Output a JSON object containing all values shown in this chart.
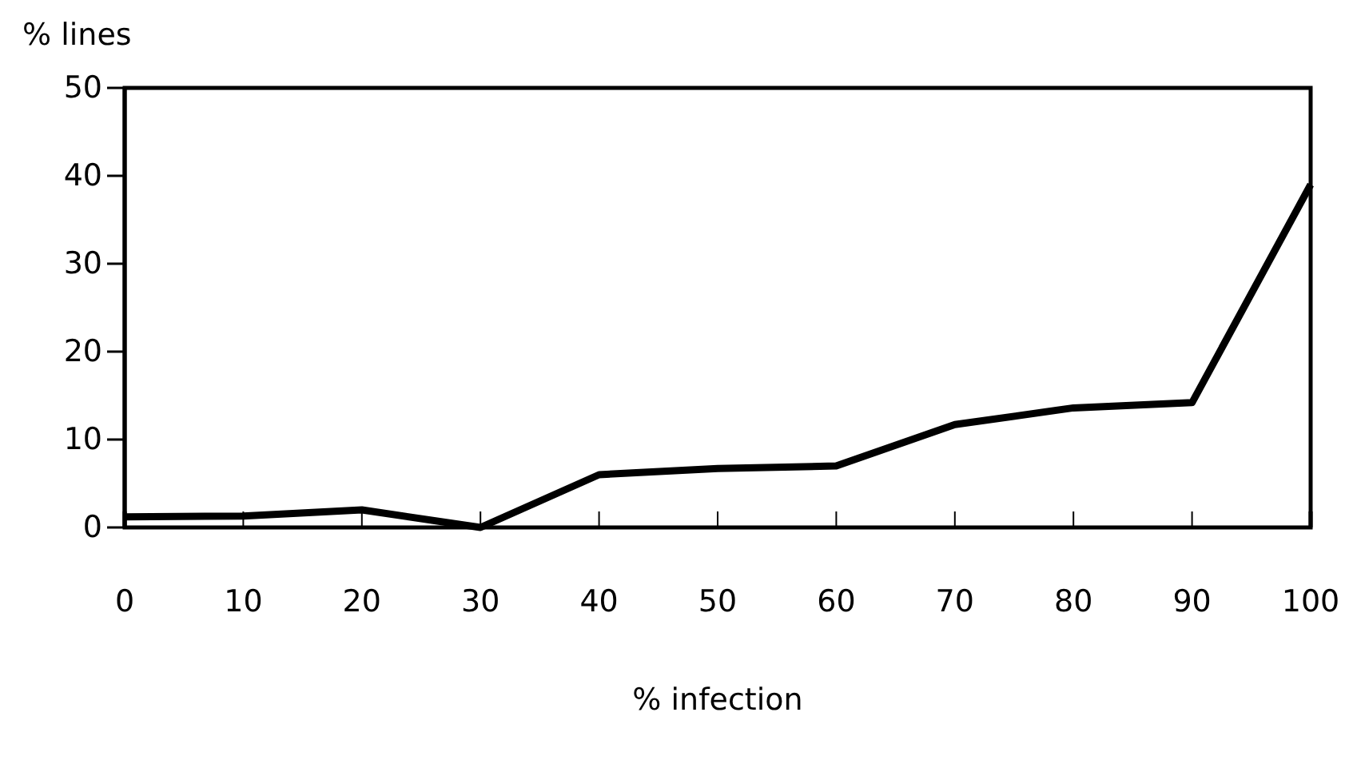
{
  "chart_data": {
    "type": "line",
    "xlabel": "% infection",
    "ylabel": "% lines",
    "x": [
      0,
      10,
      20,
      30,
      40,
      50,
      60,
      70,
      80,
      90,
      100
    ],
    "series": [
      {
        "color": "#000000",
        "values": [
          1.2,
          1.3,
          2,
          0,
          6,
          6.7,
          7,
          11.7,
          13.6,
          14.2,
          39
        ]
      }
    ],
    "xlim": [
      0,
      100
    ],
    "xticks": [
      0,
      10,
      20,
      30,
      40,
      50,
      60,
      70,
      80,
      90,
      100
    ],
    "ylim": [
      0,
      50
    ],
    "yticks": [
      0,
      10,
      20,
      30,
      40,
      50
    ],
    "grid": false,
    "marker": "none",
    "line_style": "solid"
  }
}
